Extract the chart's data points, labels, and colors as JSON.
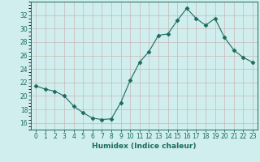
{
  "x": [
    0,
    1,
    2,
    3,
    4,
    5,
    6,
    7,
    8,
    9,
    10,
    11,
    12,
    13,
    14,
    15,
    16,
    17,
    18,
    19,
    20,
    21,
    22,
    23
  ],
  "y": [
    21.5,
    21.0,
    20.7,
    20.0,
    18.5,
    17.5,
    16.7,
    16.5,
    16.6,
    19.0,
    22.3,
    25.0,
    26.6,
    29.0,
    29.2,
    31.2,
    33.0,
    31.5,
    30.5,
    31.5,
    28.7,
    26.8,
    25.7,
    25.0
  ],
  "line_color": "#1a6b5e",
  "marker": "D",
  "marker_size": 2.5,
  "bg_color": "#d0eeee",
  "grid_major_color": "#c8b8b8",
  "grid_minor_color": "#ddd0d0",
  "xlabel": "Humidex (Indice chaleur)",
  "ylim": [
    15,
    34
  ],
  "xlim": [
    -0.5,
    23.5
  ],
  "yticks": [
    16,
    18,
    20,
    22,
    24,
    26,
    28,
    30,
    32
  ],
  "xticks": [
    0,
    1,
    2,
    3,
    4,
    5,
    6,
    7,
    8,
    9,
    10,
    11,
    12,
    13,
    14,
    15,
    16,
    17,
    18,
    19,
    20,
    21,
    22,
    23
  ],
  "xtick_labels": [
    "0",
    "1",
    "2",
    "3",
    "4",
    "5",
    "6",
    "7",
    "8",
    "9",
    "10",
    "11",
    "12",
    "13",
    "14",
    "15",
    "16",
    "17",
    "18",
    "19",
    "20",
    "21",
    "22",
    "23"
  ],
  "label_fontsize": 6.5,
  "tick_fontsize": 5.5
}
